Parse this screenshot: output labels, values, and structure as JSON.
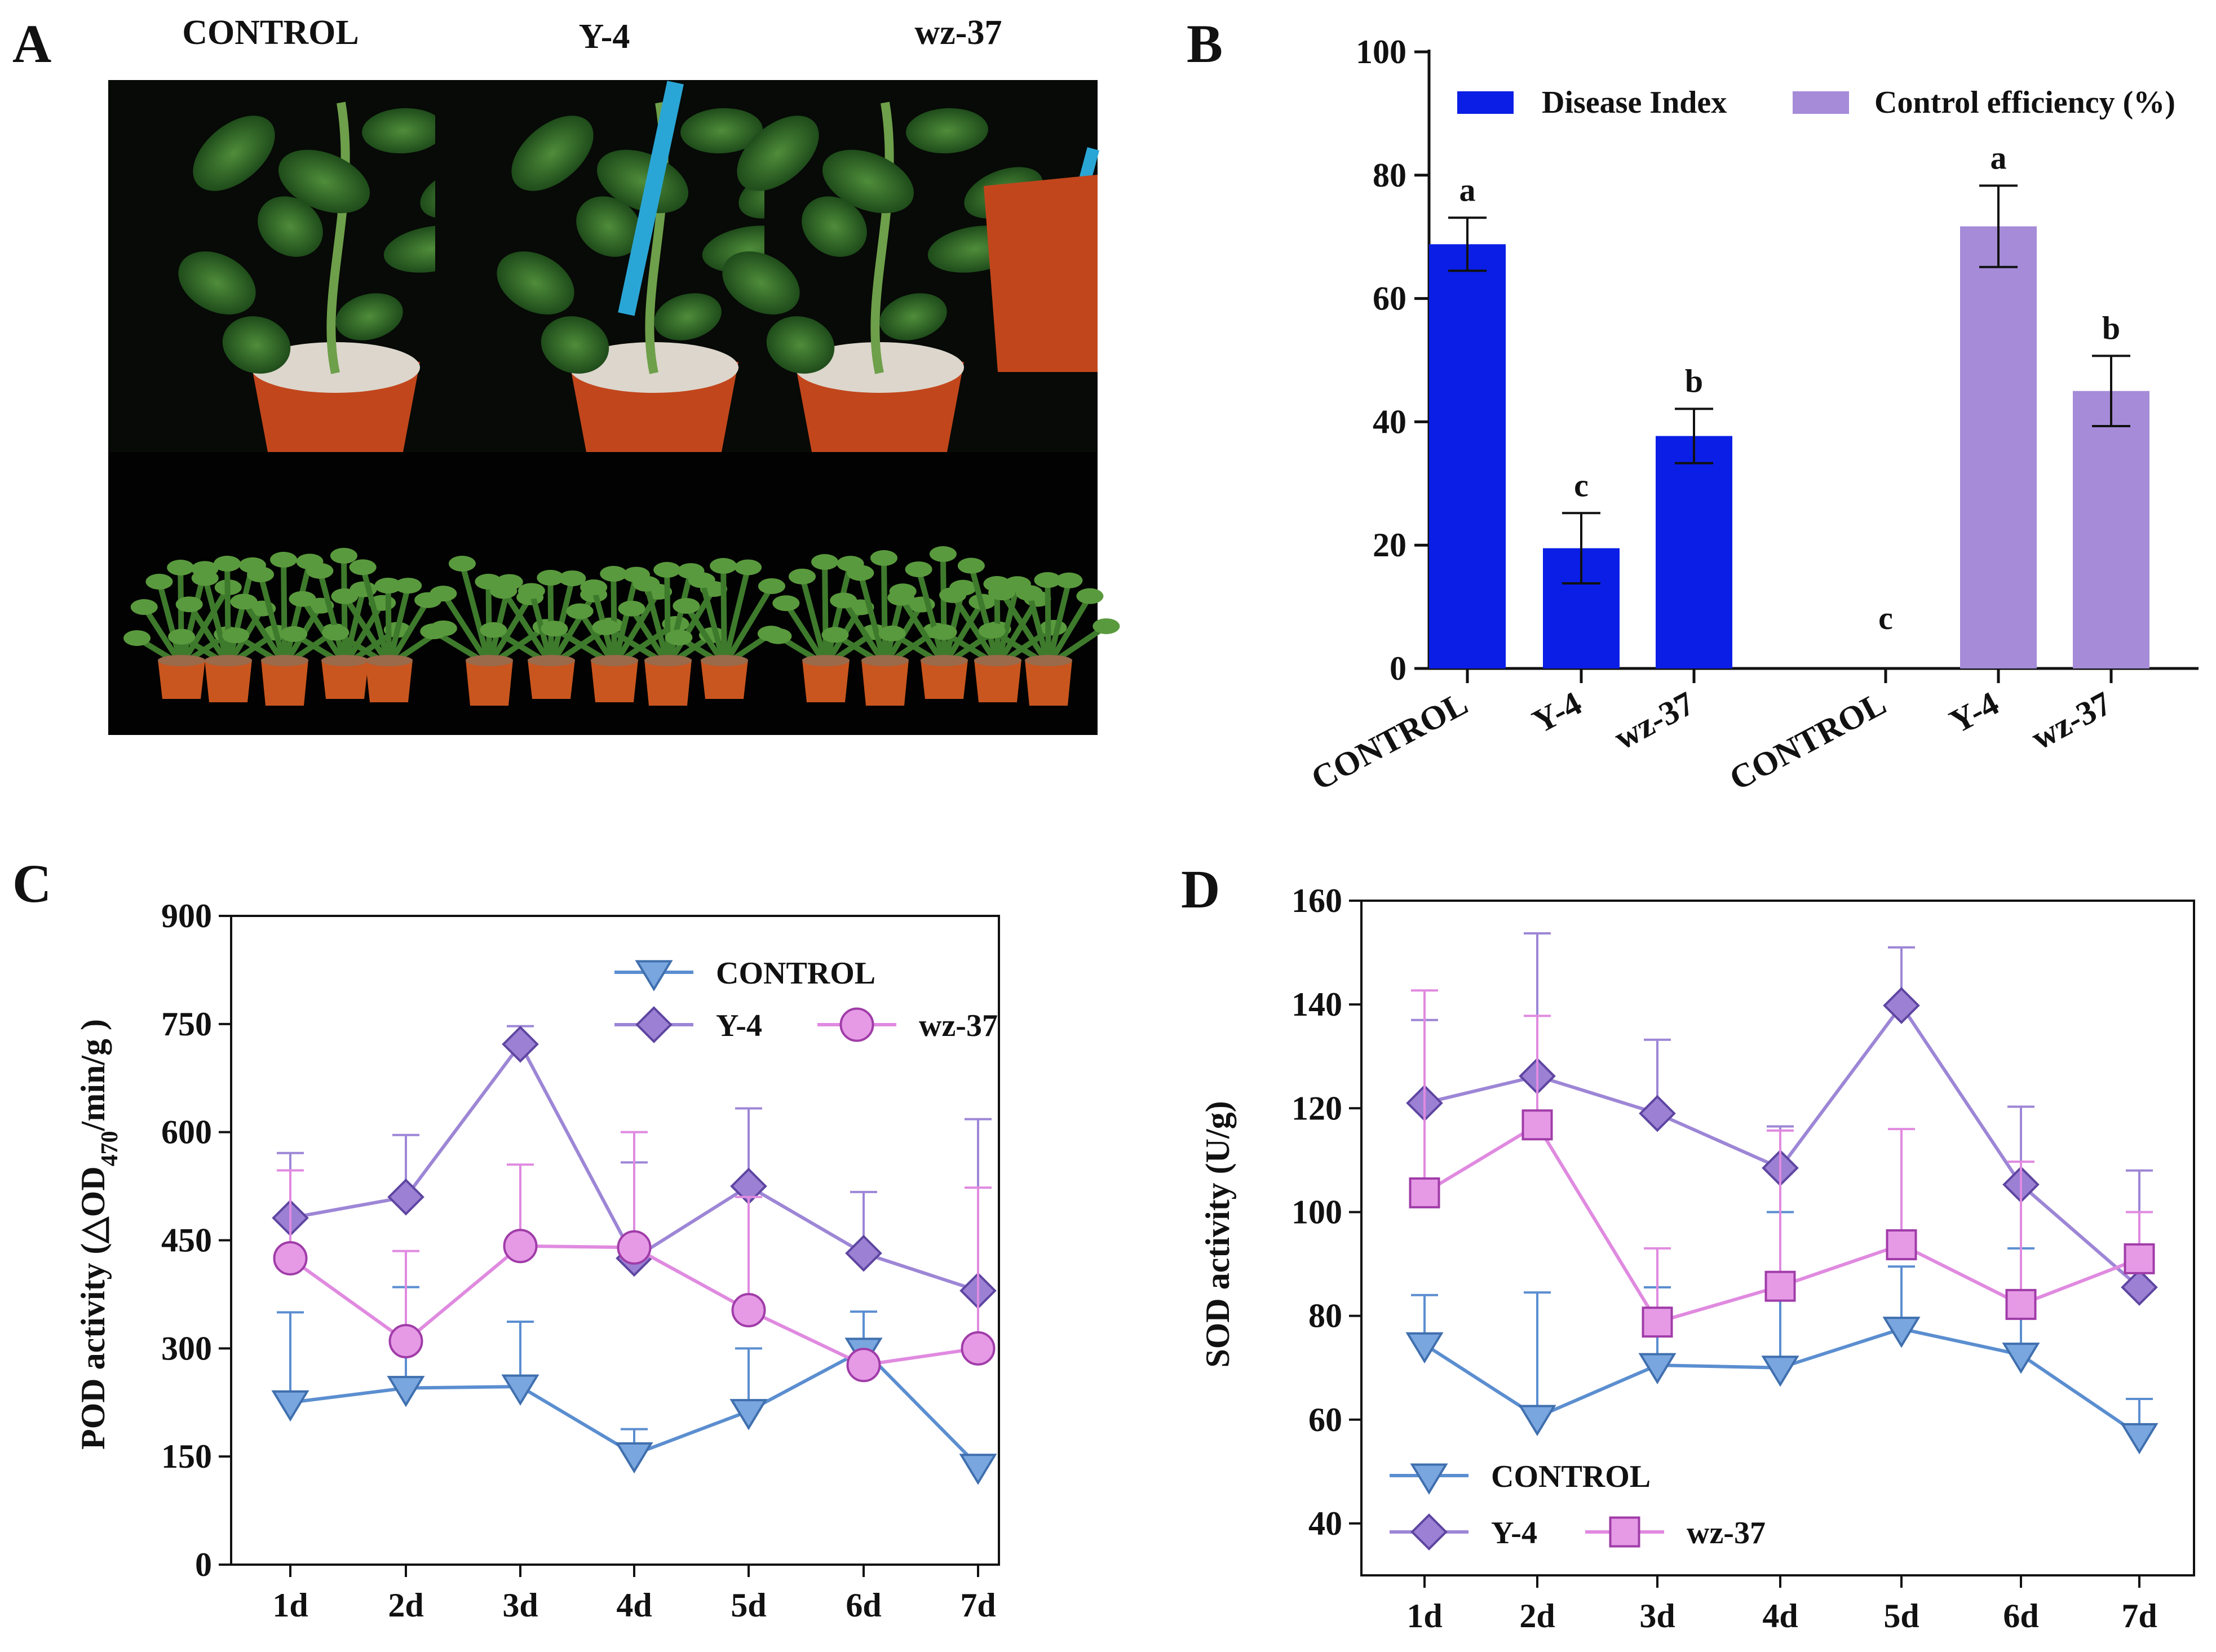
{
  "panels": {
    "A": {
      "letter": "A",
      "labels": [
        "CONTROL",
        "Y-4",
        "wz-37"
      ]
    },
    "B": {
      "letter": "B"
    },
    "C": {
      "letter": "C"
    },
    "D": {
      "letter": "D"
    }
  },
  "colors": {
    "disease_index": "#0a1ee6",
    "control_efficiency": "#a58bd8",
    "control_line": "#5b8ed0",
    "control_fill": "#7aa6df",
    "y4_line": "#9d86d6",
    "y4_fill": "#9b80d4",
    "wz37_line": "#e08ae0",
    "wz37_fill": "#e69ae6"
  },
  "chart_data": [
    {
      "id": "B",
      "type": "bar",
      "title": "",
      "xlabel": "",
      "ylabel": "",
      "ylim": [
        0,
        100
      ],
      "yticks": [
        0,
        20,
        40,
        60,
        80,
        100
      ],
      "legend_position": "top",
      "series": [
        {
          "name": "Disease Index",
          "categories": [
            "CONTROL",
            "Y-4",
            "wz-37"
          ],
          "values": [
            68.8,
            19.5,
            37.7
          ],
          "errors": [
            4.3,
            5.7,
            4.4
          ],
          "letters": [
            "a",
            "c",
            "b"
          ]
        },
        {
          "name": "Control efficiency (%)",
          "categories": [
            "CONTROL",
            "Y-4",
            "wz-37"
          ],
          "values": [
            0,
            71.7,
            45.0
          ],
          "errors": [
            0,
            6.6,
            5.7
          ],
          "letters": [
            "c",
            "a",
            "b"
          ]
        }
      ]
    },
    {
      "id": "C",
      "type": "line",
      "title": "",
      "xlabel": "",
      "ylabel_parts": [
        "POD activity (△OD",
        "470",
        "/min/g )"
      ],
      "x": [
        "1d",
        "2d",
        "3d",
        "4d",
        "5d",
        "6d",
        "7d"
      ],
      "ylim": [
        0,
        900
      ],
      "yticks": [
        0,
        150,
        300,
        450,
        600,
        750,
        900
      ],
      "legend_position": "top-right",
      "series": [
        {
          "name": "CONTROL",
          "marker": "triangle-down",
          "values": [
            225,
            245,
            247,
            153,
            213,
            298,
            137
          ],
          "errors": [
            125,
            140,
            90,
            35,
            87,
            53,
            0
          ]
        },
        {
          "name": "Y-4",
          "marker": "diamond",
          "values": [
            481,
            510,
            722,
            425,
            525,
            432,
            380
          ],
          "errors": [
            90,
            86,
            25,
            133,
            108,
            85,
            238
          ]
        },
        {
          "name": "wz-37",
          "marker": "circle",
          "values": [
            425,
            310,
            442,
            440,
            353,
            277,
            300
          ],
          "errors": [
            122,
            125,
            113,
            160,
            157,
            0,
            223
          ]
        }
      ]
    },
    {
      "id": "D",
      "type": "line",
      "title": "",
      "xlabel": "",
      "ylabel": "SOD activity (U/g)",
      "x": [
        "1d",
        "2d",
        "3d",
        "4d",
        "5d",
        "6d",
        "7d"
      ],
      "ylim": [
        30,
        160
      ],
      "yticks": [
        40,
        60,
        80,
        100,
        120,
        140,
        160
      ],
      "legend_position": "bottom-left",
      "series": [
        {
          "name": "CONTROL",
          "marker": "triangle-down",
          "values": [
            74.5,
            60.5,
            70.5,
            70,
            77.5,
            72.5,
            57
          ],
          "errors": [
            9.5,
            24,
            15,
            30,
            12,
            20.5,
            7
          ]
        },
        {
          "name": "Y-4",
          "marker": "diamond",
          "values": [
            121,
            126.2,
            119,
            108.5,
            139.8,
            105.3,
            85.5
          ],
          "errors": [
            16,
            27.5,
            14.2,
            8,
            11.2,
            15,
            22.5
          ]
        },
        {
          "name": "wz-37",
          "marker": "square",
          "values": [
            103.7,
            116.8,
            78.8,
            85.7,
            93.7,
            82.2,
            91
          ],
          "errors": [
            39,
            21,
            14.2,
            30,
            22.3,
            27.5,
            9
          ]
        }
      ]
    }
  ]
}
